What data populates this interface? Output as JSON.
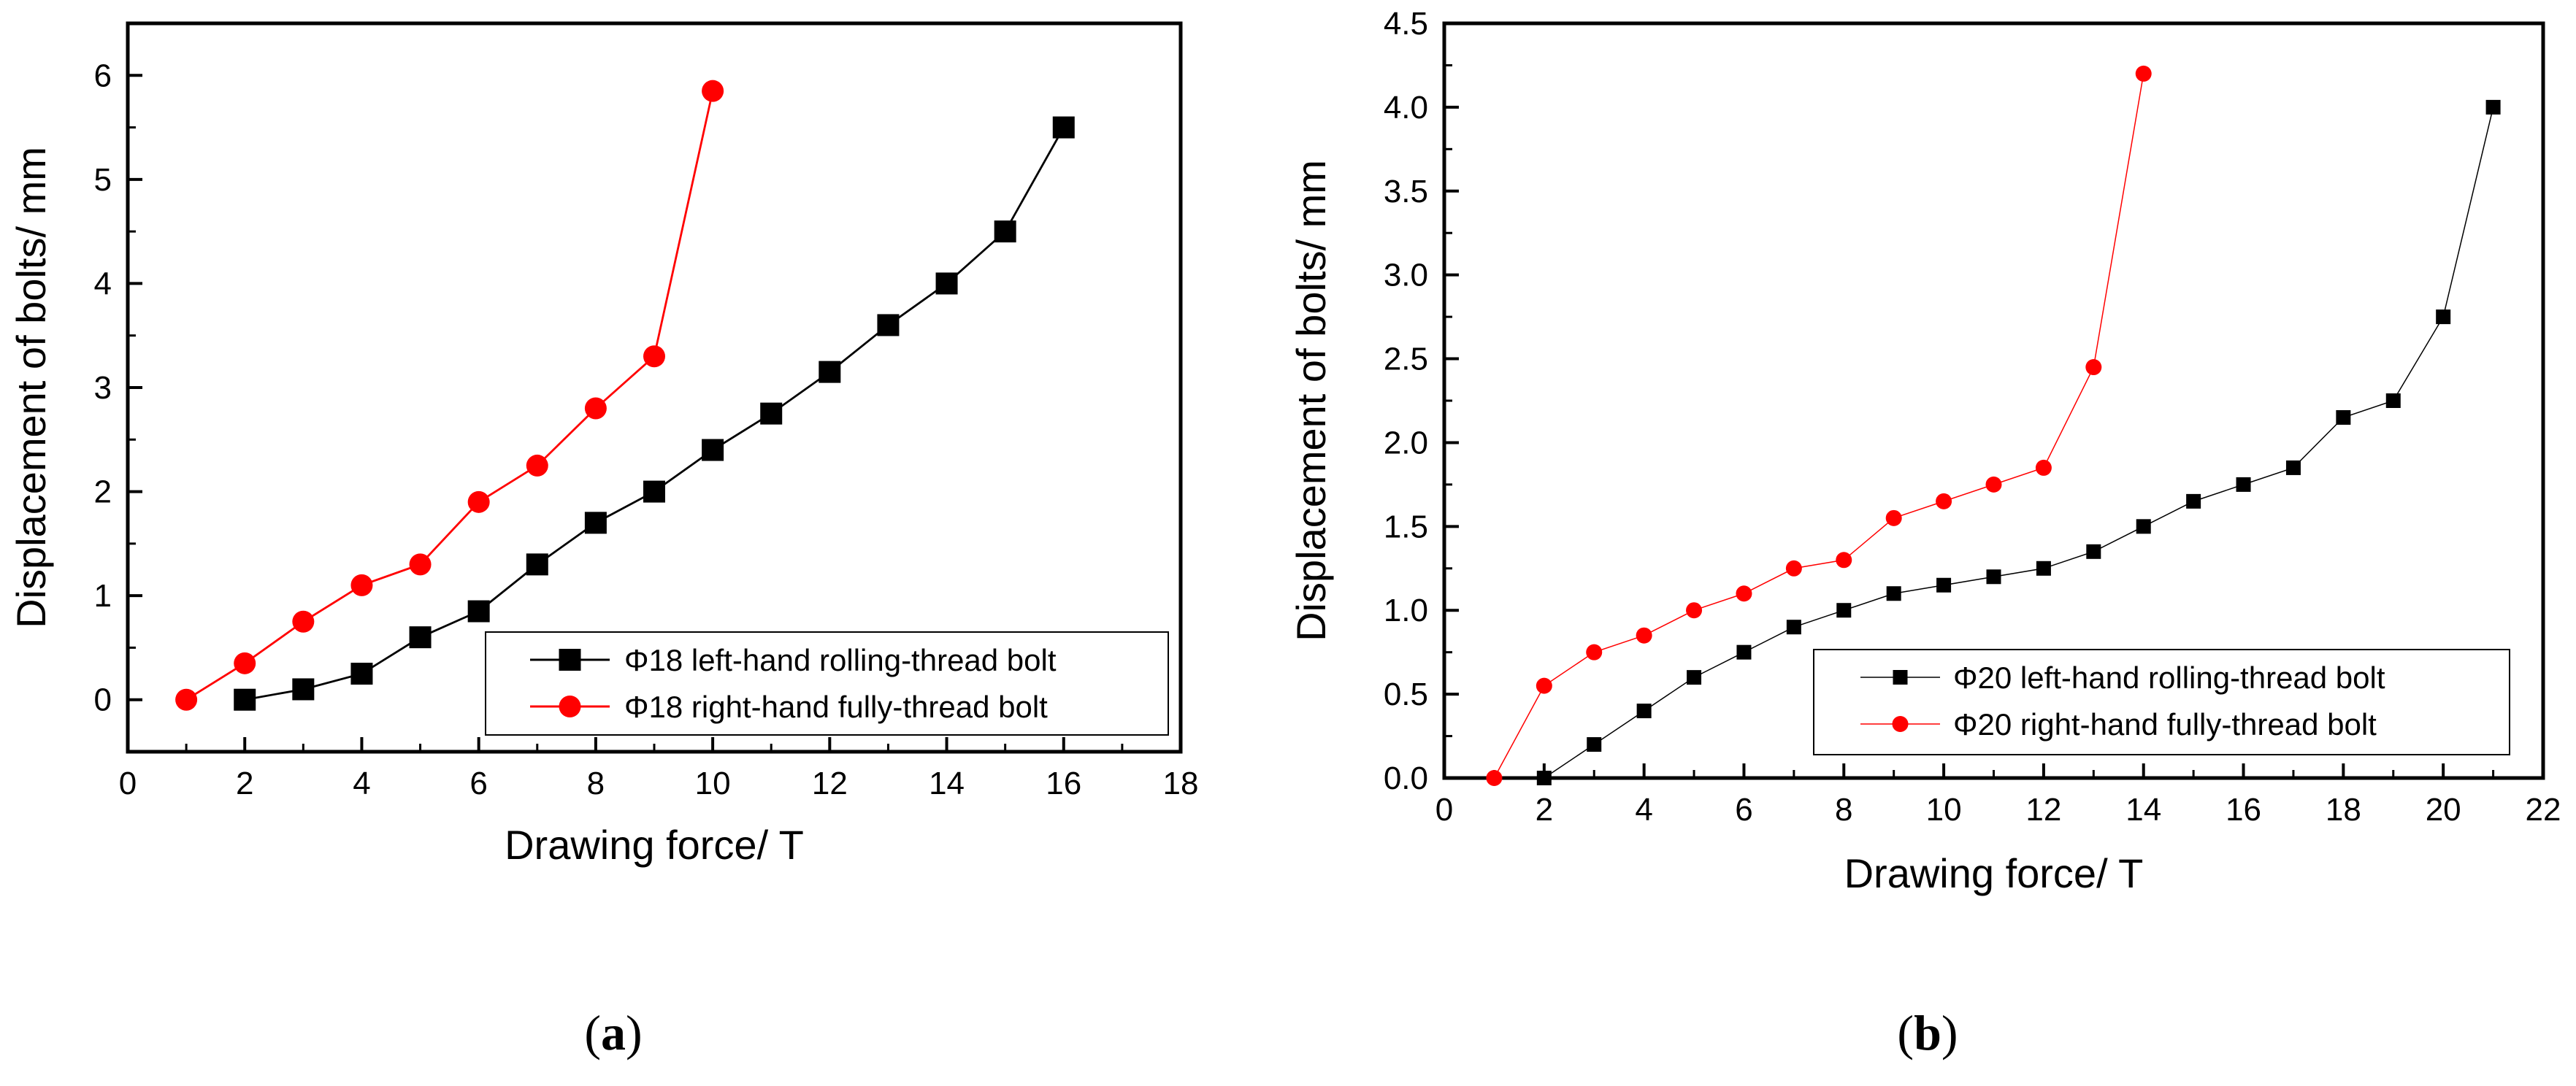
{
  "chart_data": [
    {
      "type": "line",
      "panel_label": "a",
      "title": "",
      "xlabel": "Drawing force/ T",
      "ylabel": "Displacement of bolts/ mm",
      "xlim": [
        0,
        18
      ],
      "ylim": [
        -0.5,
        6.5
      ],
      "xticks": [
        0,
        2,
        4,
        6,
        8,
        10,
        12,
        14,
        16,
        18
      ],
      "yticks": [
        0,
        1,
        2,
        3,
        4,
        5,
        6
      ],
      "xtick_labels": [
        "0",
        "2",
        "4",
        "6",
        "8",
        "10",
        "12",
        "14",
        "16",
        "18"
      ],
      "ytick_labels": [
        "0",
        "1",
        "2",
        "3",
        "4",
        "5",
        "6"
      ],
      "grid": false,
      "legend_position": "bottom-right",
      "series": [
        {
          "name": "Φ18 left-hand rolling-thread bolt",
          "color": "#000000",
          "marker": "square",
          "x": [
            2,
            3,
            4,
            5,
            6,
            7,
            8,
            9,
            10,
            11,
            12,
            13,
            14,
            15,
            16
          ],
          "y": [
            0,
            0.1,
            0.25,
            0.6,
            0.85,
            1.3,
            1.7,
            2.0,
            2.4,
            2.75,
            3.15,
            3.6,
            4.0,
            4.5,
            5.5
          ]
        },
        {
          "name": "Φ18 right-hand fully-thread bolt",
          "color": "#ff0000",
          "marker": "circle",
          "x": [
            1,
            2,
            3,
            4,
            5,
            6,
            7,
            8,
            9,
            10
          ],
          "y": [
            0,
            0.35,
            0.75,
            1.1,
            1.3,
            1.9,
            2.25,
            2.8,
            3.3,
            5.85
          ]
        }
      ]
    },
    {
      "type": "line",
      "panel_label": "b",
      "title": "",
      "xlabel": "Drawing force/ T",
      "ylabel": "Displacement of bolts/ mm",
      "xlim": [
        0,
        22
      ],
      "ylim": [
        0,
        4.5
      ],
      "xticks": [
        0,
        2,
        4,
        6,
        8,
        10,
        12,
        14,
        16,
        18,
        20,
        22
      ],
      "yticks": [
        0,
        0.5,
        1.0,
        1.5,
        2.0,
        2.5,
        3.0,
        3.5,
        4.0,
        4.5
      ],
      "xtick_labels": [
        "0",
        "2",
        "4",
        "6",
        "8",
        "10",
        "12",
        "14",
        "16",
        "18",
        "20",
        "22"
      ],
      "ytick_labels": [
        "0.0",
        "0.5",
        "1.0",
        "1.5",
        "2.0",
        "2.5",
        "3.0",
        "3.5",
        "4.0",
        "4.5"
      ],
      "grid": false,
      "legend_position": "bottom-right",
      "series": [
        {
          "name": "Φ20 left-hand rolling-thread bolt",
          "color": "#000000",
          "marker": "square",
          "x": [
            2,
            3,
            4,
            5,
            6,
            7,
            8,
            9,
            10,
            11,
            12,
            13,
            14,
            15,
            16,
            17,
            18,
            19,
            20,
            21
          ],
          "y": [
            0,
            0.2,
            0.4,
            0.6,
            0.75,
            0.9,
            1.0,
            1.1,
            1.15,
            1.2,
            1.25,
            1.35,
            1.5,
            1.65,
            1.75,
            1.85,
            2.15,
            2.25,
            2.75,
            4.0
          ]
        },
        {
          "name": "Φ20 right-hand fully-thread bolt",
          "color": "#ff0000",
          "marker": "circle",
          "x": [
            1,
            2,
            3,
            4,
            5,
            6,
            7,
            8,
            9,
            10,
            11,
            12,
            13,
            14
          ],
          "y": [
            0,
            0.55,
            0.75,
            0.85,
            1.0,
            1.1,
            1.25,
            1.3,
            1.55,
            1.65,
            1.75,
            1.85,
            2.45,
            4.2
          ]
        }
      ]
    }
  ],
  "captions": [
    "a",
    "b"
  ]
}
